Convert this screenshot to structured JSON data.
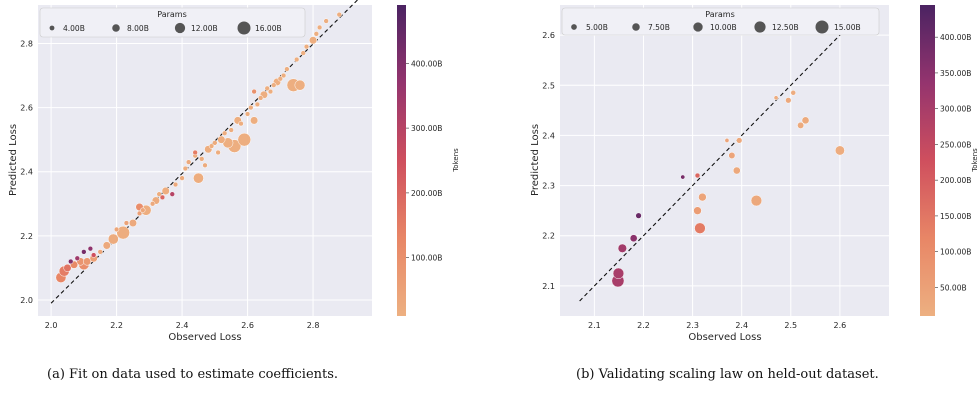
{
  "chart_data": [
    {
      "type": "scatter",
      "caption": "(a) Fit on data used to estimate coefficients.",
      "xlabel": "Observed Loss",
      "ylabel": "Predicted Loss",
      "xlim": [
        1.96,
        2.98
      ],
      "ylim": [
        1.95,
        2.92
      ],
      "xticks": [
        2.0,
        2.2,
        2.4,
        2.6,
        2.8
      ],
      "yticks": [
        2.0,
        2.2,
        2.4,
        2.6,
        2.8
      ],
      "xtick_labels": [
        "2.0",
        "2.2",
        "2.4",
        "2.6",
        "2.8"
      ],
      "ytick_labels": [
        "2.0",
        "2.2",
        "2.4",
        "2.6",
        "2.8"
      ],
      "grid": true,
      "reference_line": {
        "style": "dashed",
        "from": [
          2.0,
          1.99
        ],
        "to": [
          2.94,
          2.94
        ]
      },
      "size_legend": {
        "title": "Params",
        "placement": "top",
        "entries": [
          {
            "label": "4.00B",
            "value": 4
          },
          {
            "label": "8.00B",
            "value": 8
          },
          {
            "label": "12.00B",
            "value": 12
          },
          {
            "label": "16.00B",
            "value": 16
          }
        ]
      },
      "color_scale": {
        "label": "Tokens",
        "min": 10,
        "max": 490,
        "ticks": [
          100,
          200,
          300,
          400
        ],
        "tick_labels": [
          "100.00B",
          "200.00B",
          "300.00B",
          "400.00B"
        ]
      },
      "size_range": [
        1,
        16
      ],
      "points": [
        [
          2.03,
          2.07,
          12,
          130
        ],
        [
          2.04,
          2.09,
          12,
          150
        ],
        [
          2.05,
          2.1,
          8,
          170
        ],
        [
          2.06,
          2.12,
          4,
          400
        ],
        [
          2.07,
          2.11,
          8,
          120
        ],
        [
          2.08,
          2.13,
          4,
          350
        ],
        [
          2.09,
          2.12,
          8,
          90
        ],
        [
          2.1,
          2.15,
          4,
          420
        ],
        [
          2.1,
          2.11,
          12,
          110
        ],
        [
          2.11,
          2.12,
          8,
          80
        ],
        [
          2.12,
          2.16,
          4,
          380
        ],
        [
          2.13,
          2.13,
          8,
          60
        ],
        [
          2.15,
          2.15,
          4,
          40
        ],
        [
          2.17,
          2.17,
          8,
          30
        ],
        [
          2.19,
          2.19,
          12,
          25
        ],
        [
          2.2,
          2.22,
          4,
          40
        ],
        [
          2.22,
          2.21,
          16,
          20
        ],
        [
          2.23,
          2.24,
          4,
          50
        ],
        [
          2.25,
          2.24,
          8,
          30
        ],
        [
          2.27,
          2.27,
          4,
          60
        ],
        [
          2.28,
          2.28,
          4,
          40
        ],
        [
          2.29,
          2.28,
          12,
          20
        ],
        [
          2.31,
          2.3,
          4,
          30
        ],
        [
          2.32,
          2.31,
          8,
          25
        ],
        [
          2.33,
          2.33,
          4,
          20
        ],
        [
          2.34,
          2.32,
          4,
          200
        ],
        [
          2.35,
          2.34,
          8,
          20
        ],
        [
          2.37,
          2.33,
          4,
          300
        ],
        [
          2.38,
          2.36,
          4,
          30
        ],
        [
          2.4,
          2.38,
          4,
          25
        ],
        [
          2.41,
          2.41,
          4,
          20
        ],
        [
          2.42,
          2.43,
          4,
          30
        ],
        [
          2.44,
          2.45,
          4,
          20
        ],
        [
          2.45,
          2.38,
          12,
          20
        ],
        [
          2.46,
          2.44,
          4,
          20
        ],
        [
          2.47,
          2.42,
          4,
          25
        ],
        [
          2.48,
          2.47,
          8,
          20
        ],
        [
          2.49,
          2.48,
          4,
          20
        ],
        [
          2.5,
          2.49,
          4,
          25
        ],
        [
          2.51,
          2.46,
          4,
          20
        ],
        [
          2.52,
          2.5,
          8,
          20
        ],
        [
          2.53,
          2.52,
          4,
          20
        ],
        [
          2.54,
          2.49,
          12,
          15
        ],
        [
          2.55,
          2.53,
          4,
          20
        ],
        [
          2.56,
          2.48,
          16,
          15
        ],
        [
          2.57,
          2.56,
          8,
          15
        ],
        [
          2.58,
          2.55,
          4,
          20
        ],
        [
          2.59,
          2.5,
          16,
          15
        ],
        [
          2.6,
          2.58,
          4,
          15
        ],
        [
          2.61,
          2.6,
          4,
          20
        ],
        [
          2.62,
          2.56,
          8,
          15
        ],
        [
          2.63,
          2.61,
          4,
          15
        ],
        [
          2.64,
          2.63,
          4,
          15
        ],
        [
          2.65,
          2.64,
          8,
          15
        ],
        [
          2.66,
          2.66,
          4,
          15
        ],
        [
          2.67,
          2.65,
          4,
          15
        ],
        [
          2.68,
          2.67,
          4,
          15
        ],
        [
          2.69,
          2.68,
          8,
          15
        ],
        [
          2.7,
          2.69,
          4,
          15
        ],
        [
          2.71,
          2.7,
          4,
          15
        ],
        [
          2.72,
          2.72,
          4,
          15
        ],
        [
          2.74,
          2.67,
          16,
          15
        ],
        [
          2.76,
          2.67,
          12,
          15
        ],
        [
          2.75,
          2.75,
          4,
          15
        ],
        [
          2.77,
          2.77,
          4,
          15
        ],
        [
          2.78,
          2.79,
          4,
          15
        ],
        [
          2.8,
          2.81,
          8,
          15
        ],
        [
          2.81,
          2.83,
          4,
          15
        ],
        [
          2.82,
          2.85,
          4,
          15
        ],
        [
          2.84,
          2.87,
          4,
          15
        ],
        [
          2.88,
          2.89,
          4,
          15
        ],
        [
          2.27,
          2.29,
          8,
          110
        ],
        [
          2.13,
          2.14,
          4,
          250
        ],
        [
          2.44,
          2.46,
          4,
          150
        ],
        [
          2.62,
          2.65,
          4,
          100
        ]
      ]
    },
    {
      "type": "scatter",
      "caption": "(b) Validating scaling law on held-out dataset.",
      "xlabel": "Observed Loss",
      "ylabel": "Predicted Loss",
      "xlim": [
        2.03,
        2.7
      ],
      "ylim": [
        2.04,
        2.66
      ],
      "xticks": [
        2.1,
        2.2,
        2.3,
        2.4,
        2.5,
        2.6
      ],
      "yticks": [
        2.1,
        2.2,
        2.3,
        2.4,
        2.5,
        2.6
      ],
      "xtick_labels": [
        "2.1",
        "2.2",
        "2.3",
        "2.4",
        "2.5",
        "2.6"
      ],
      "ytick_labels": [
        "2.1",
        "2.2",
        "2.3",
        "2.4",
        "2.5",
        "2.6"
      ],
      "grid": true,
      "reference_line": {
        "style": "dashed",
        "from": [
          2.07,
          2.07
        ],
        "to": [
          2.65,
          2.65
        ]
      },
      "size_legend": {
        "title": "Params",
        "placement": "top",
        "entries": [
          {
            "label": "5.00B",
            "value": 5
          },
          {
            "label": "7.50B",
            "value": 7.5
          },
          {
            "label": "10.00B",
            "value": 10
          },
          {
            "label": "12.50B",
            "value": 12.5
          },
          {
            "label": "15.00B",
            "value": 15
          }
        ]
      },
      "color_scale": {
        "label": "Tokens",
        "min": 10,
        "max": 445,
        "ticks": [
          50,
          100,
          150,
          200,
          250,
          300,
          350,
          400
        ],
        "tick_labels": [
          "50.00B",
          "100.00B",
          "150.00B",
          "200.00B",
          "250.00B",
          "300.00B",
          "350.00B",
          "400.00B"
        ]
      },
      "size_range": [
        1,
        15
      ],
      "points": [
        [
          2.148,
          2.11,
          14,
          300
        ],
        [
          2.149,
          2.125,
          12,
          300
        ],
        [
          2.157,
          2.175,
          9,
          310
        ],
        [
          2.18,
          2.195,
          7,
          350
        ],
        [
          2.19,
          2.24,
          5,
          400
        ],
        [
          2.28,
          2.317,
          3,
          380
        ],
        [
          2.31,
          2.32,
          4,
          180
        ],
        [
          2.31,
          2.25,
          8,
          60
        ],
        [
          2.315,
          2.215,
          12,
          140
        ],
        [
          2.32,
          2.277,
          8,
          40
        ],
        [
          2.37,
          2.39,
          3,
          40
        ],
        [
          2.38,
          2.36,
          6,
          40
        ],
        [
          2.39,
          2.33,
          7,
          30
        ],
        [
          2.395,
          2.39,
          5,
          30
        ],
        [
          2.43,
          2.27,
          12,
          30
        ],
        [
          2.47,
          2.475,
          3,
          20
        ],
        [
          2.495,
          2.47,
          5,
          30
        ],
        [
          2.505,
          2.485,
          4,
          20
        ],
        [
          2.52,
          2.42,
          6,
          25
        ],
        [
          2.53,
          2.43,
          7,
          25
        ],
        [
          2.6,
          2.37,
          10,
          20
        ]
      ]
    }
  ]
}
